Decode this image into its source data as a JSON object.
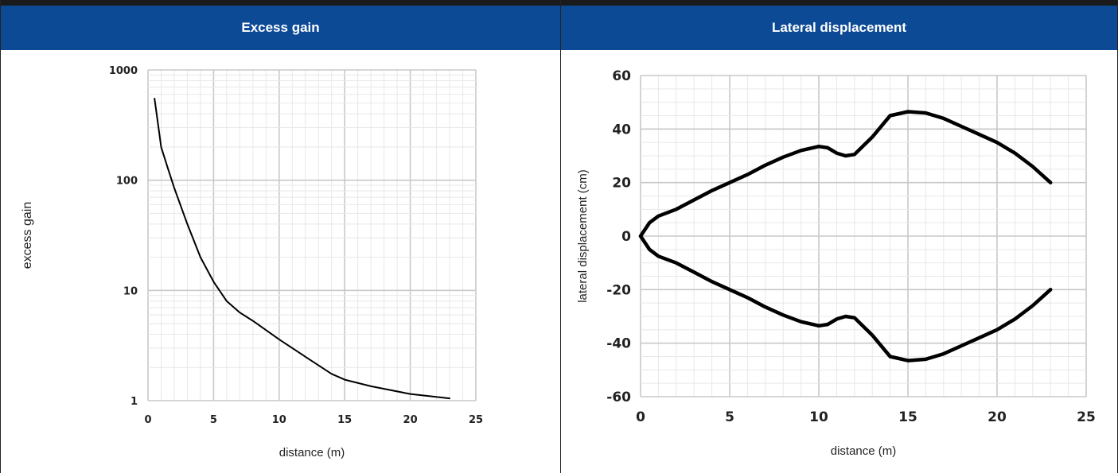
{
  "panels": {
    "left_title": "Excess gain",
    "right_title": "Lateral displacement"
  },
  "chart_data": [
    {
      "type": "line",
      "title": "Excess gain",
      "xlabel": "distance (m)",
      "ylabel": "excess gain",
      "xlim": [
        0,
        25
      ],
      "ylim": [
        1,
        1000
      ],
      "yscale": "log",
      "x_ticks": [
        0,
        5,
        10,
        15,
        20,
        25
      ],
      "y_ticks": [
        1,
        10,
        100,
        1000
      ],
      "grid": true,
      "series": [
        {
          "x": [
            0.5,
            0.8,
            1,
            1.5,
            2,
            3,
            4,
            5,
            6,
            7,
            8,
            10,
            12,
            14,
            15,
            17,
            20,
            23
          ],
          "y": [
            550,
            300,
            200,
            130,
            85,
            40,
            20,
            12,
            8,
            6.3,
            5.3,
            3.6,
            2.5,
            1.75,
            1.55,
            1.35,
            1.15,
            1.05
          ]
        }
      ]
    },
    {
      "type": "line",
      "title": "Lateral displacement",
      "xlabel": "distance (m)",
      "ylabel": "lateral displacement (cm)",
      "xlim": [
        0,
        25
      ],
      "ylim": [
        -60,
        60
      ],
      "x_ticks": [
        0,
        5,
        10,
        15,
        20,
        25
      ],
      "y_ticks": [
        -60,
        -40,
        -20,
        0,
        20,
        40,
        60
      ],
      "grid": true,
      "series": [
        {
          "x": [
            0,
            0.5,
            1,
            2,
            3,
            4,
            5,
            6,
            7,
            8,
            9,
            10,
            10.5,
            11,
            11.5,
            12,
            13,
            14,
            15,
            16,
            17,
            18,
            19,
            20,
            21,
            22,
            23
          ],
          "y": [
            0,
            5,
            7.5,
            10,
            13.5,
            17,
            20,
            23,
            26.5,
            29.5,
            32,
            33.5,
            33,
            31,
            30,
            30.5,
            37,
            45,
            46.5,
            46,
            44,
            41,
            38,
            35,
            31,
            26,
            20
          ]
        },
        {
          "x": [
            0,
            0.5,
            1,
            2,
            3,
            4,
            5,
            6,
            7,
            8,
            9,
            10,
            10.5,
            11,
            11.5,
            12,
            13,
            14,
            15,
            16,
            17,
            18,
            19,
            20,
            21,
            22,
            23
          ],
          "y": [
            0,
            -5,
            -7.5,
            -10,
            -13.5,
            -17,
            -20,
            -23,
            -26.5,
            -29.5,
            -32,
            -33.5,
            -33,
            -31,
            -30,
            -30.5,
            -37,
            -45,
            -46.5,
            -46,
            -44,
            -41,
            -38,
            -35,
            -31,
            -26,
            -20
          ]
        }
      ]
    }
  ]
}
